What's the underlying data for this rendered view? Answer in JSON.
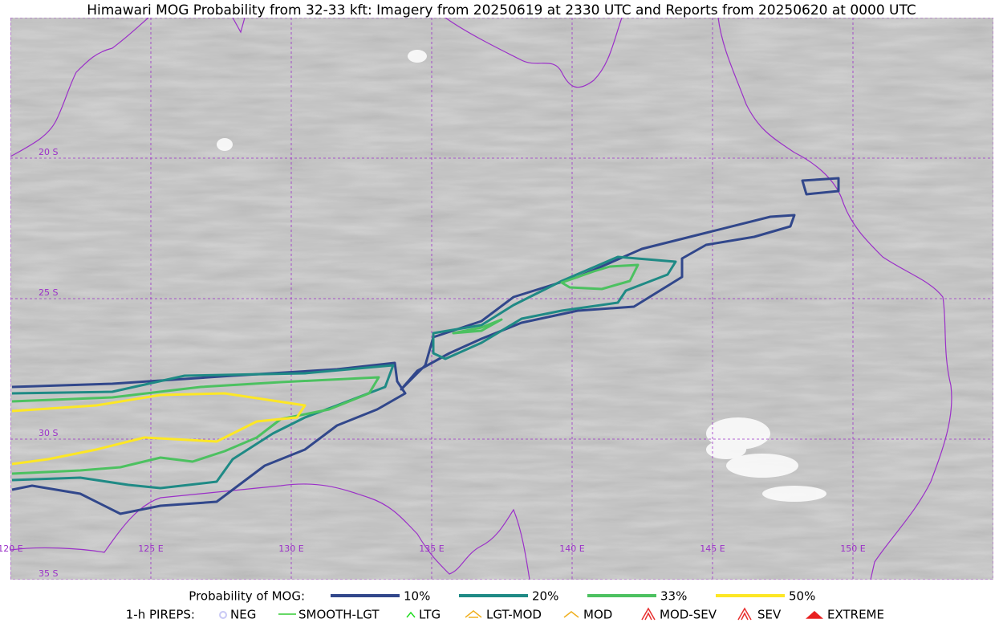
{
  "title": "Himawari MOG Probability from 32-33 kft: Imagery from 20250619 at 2330 UTC and Reports from 20250620 at 0000 UTC",
  "map": {
    "lat_labels": [
      "20 S",
      "25 S",
      "30 S",
      "35 S"
    ],
    "lon_labels": [
      "120 E",
      "125 E",
      "130 E",
      "135 E",
      "140 E",
      "145 E",
      "150 E"
    ]
  },
  "legend": {
    "probability": {
      "title": "Probability of MOG:",
      "items": [
        {
          "label": "10%",
          "color": "#31478b"
        },
        {
          "label": "20%",
          "color": "#1f8a85"
        },
        {
          "label": "33%",
          "color": "#4cc160"
        },
        {
          "label": "50%",
          "color": "#fde725"
        }
      ]
    },
    "pireps": {
      "title": "1-h PIREPS:",
      "items": [
        {
          "label": "NEG",
          "color": "#c9c9f5"
        },
        {
          "label": "SMOOTH-LGT",
          "color": "#33cc33"
        },
        {
          "label": "LTG",
          "color": "#22dd22"
        },
        {
          "label": "LGT-MOD",
          "color": "#f0b020"
        },
        {
          "label": "MOD",
          "color": "#f0b020"
        },
        {
          "label": "MOD-SEV",
          "color": "#e83030"
        },
        {
          "label": "SEV",
          "color": "#e83030"
        },
        {
          "label": "EXTREME",
          "color": "#e82020"
        }
      ]
    }
  }
}
